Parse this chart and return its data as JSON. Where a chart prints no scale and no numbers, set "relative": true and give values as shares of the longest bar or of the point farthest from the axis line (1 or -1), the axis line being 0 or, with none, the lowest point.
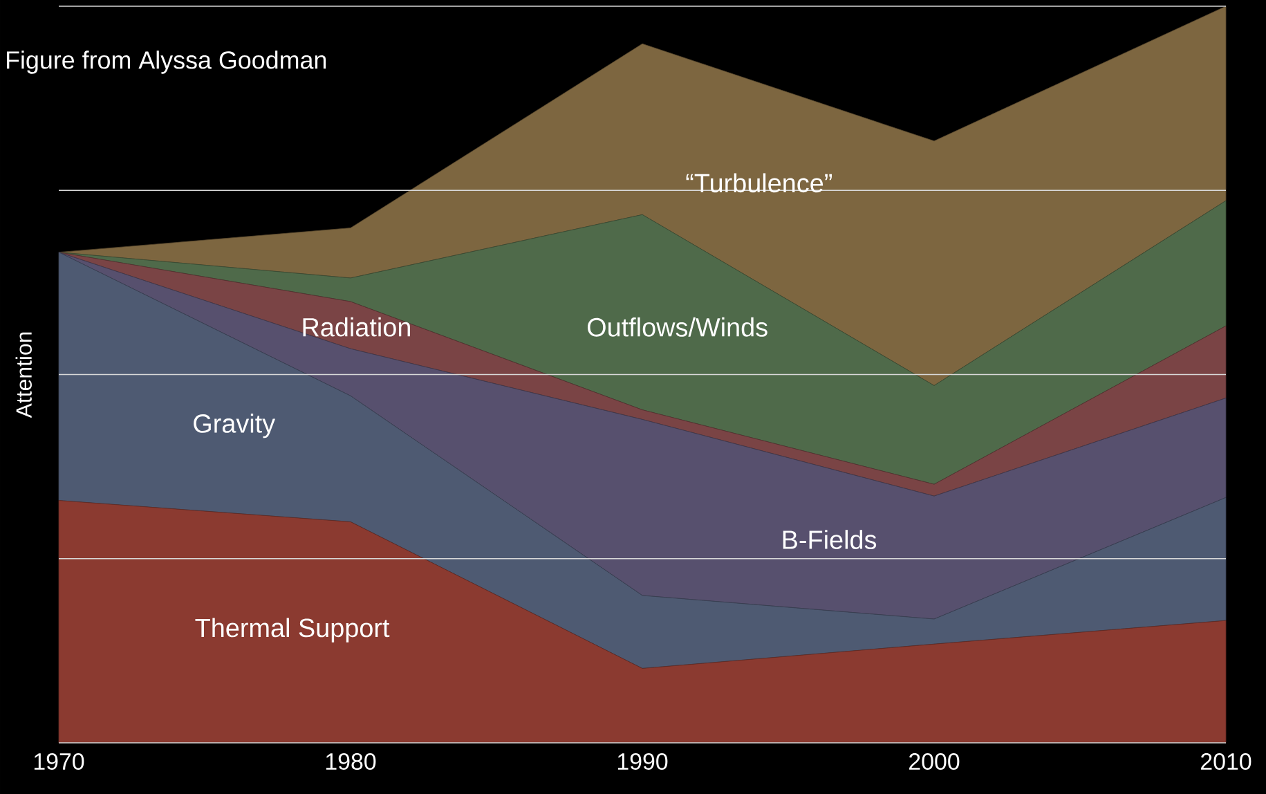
{
  "chart_data": {
    "type": "area",
    "stacked": true,
    "relative": true,
    "ylabel": "Attention",
    "annotations": [
      "Figure from Alyssa Goodman"
    ],
    "x": [
      1970,
      1980,
      1990,
      2000,
      2010
    ],
    "xlim": [
      1970,
      2010
    ],
    "xticks": [
      1970,
      1980,
      1990,
      2000,
      2010
    ],
    "grid": "y",
    "series": [
      {
        "name": "Thermal Support",
        "color": "#8b3a30",
        "values": [
          0.329,
          0.3,
          0.101,
          0.134,
          0.166
        ]
      },
      {
        "name": "Gravity",
        "color": "#4e5a72",
        "values": [
          0.337,
          0.171,
          0.099,
          0.034,
          0.167
        ]
      },
      {
        "name": "B-Fields",
        "color": "#57506e",
        "values": [
          0,
          0.064,
          0.239,
          0.167,
          0.135
        ]
      },
      {
        "name": "Radiation",
        "color": "#7a4445",
        "values": [
          0,
          0.064,
          0.013,
          0.016,
          0.098
        ]
      },
      {
        "name": "Outflows/Winds",
        "color": "#4f6a4a",
        "values": [
          0,
          0.032,
          0.265,
          0.134,
          0.17
        ]
      },
      {
        "name": "“Turbulence”",
        "color": "#7d6640",
        "values": [
          0,
          0.068,
          0.232,
          0.332,
          0.264
        ]
      }
    ]
  }
}
